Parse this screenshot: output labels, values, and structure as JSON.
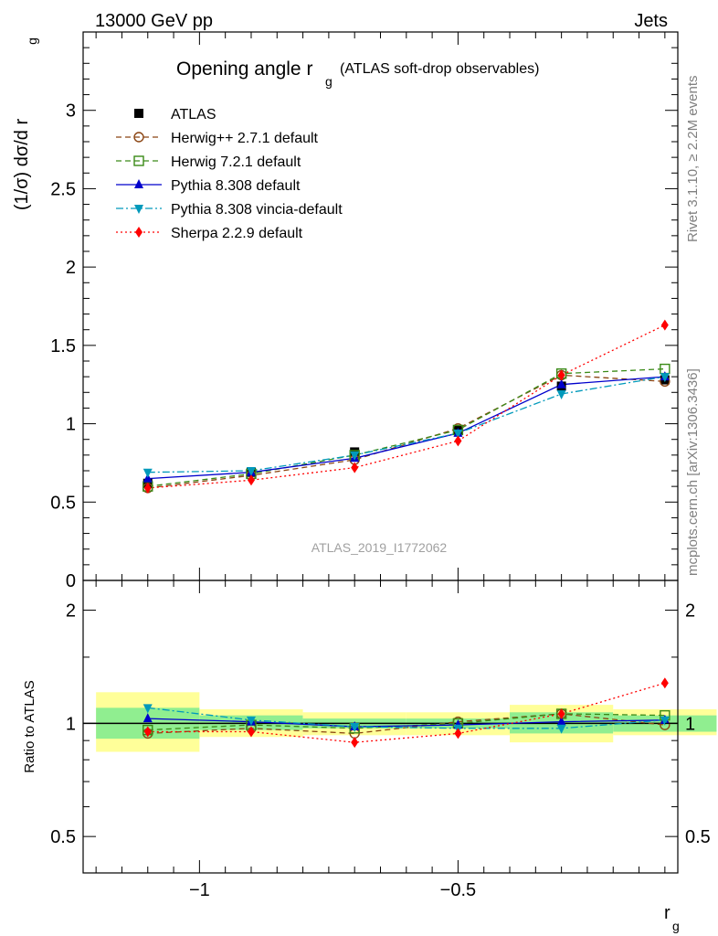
{
  "header": {
    "energy_label": "13000 GeV pp",
    "process_label": "Jets"
  },
  "side_labels": {
    "rivet": "Rivet 3.1.10, ≥ 2.2M events",
    "mcplots": "mcplots.cern.ch [arXiv:1306.3436]"
  },
  "chart_data": [
    {
      "type": "line",
      "title": "Opening angle r",
      "title_sub": "g",
      "title_extra": "(ATLAS soft-drop observables)",
      "ylabel": "(1/σ) dσ/d r",
      "ylabel_sub": "g",
      "watermark": "ATLAS_2019_I1772062",
      "xlim": [
        -1.225,
        -0.075
      ],
      "ylim": [
        0,
        3.5
      ],
      "yticks": [
        0,
        0.5,
        1,
        1.5,
        2,
        2.5,
        3
      ],
      "ytick_labels": [
        "0",
        "0.5",
        "1",
        "1.5",
        "2",
        "2.5",
        "3"
      ],
      "x": [
        -1.1,
        -0.9,
        -0.7,
        -0.5,
        -0.3,
        -0.1
      ],
      "bin_edges": [
        -1.2,
        -1.0,
        -0.8,
        -0.6,
        -0.4,
        -0.2,
        -0.0
      ],
      "series": [
        {
          "name": "ATLAS",
          "color": "#000000",
          "marker": "square",
          "line": "none",
          "values": [
            0.62,
            0.69,
            0.82,
            0.96,
            1.24,
            1.28
          ]
        },
        {
          "name": "Herwig++ 2.7.1 default",
          "color": "#8b4513",
          "marker": "circle-open",
          "line": "dash",
          "values": [
            0.59,
            0.67,
            0.77,
            0.97,
            1.31,
            1.27
          ]
        },
        {
          "name": "Herwig 7.2.1 default",
          "color": "#3a8a17",
          "marker": "square-open",
          "line": "dash",
          "values": [
            0.6,
            0.68,
            0.8,
            0.96,
            1.32,
            1.35
          ]
        },
        {
          "name": "Pythia 8.308 default",
          "color": "#0000cc",
          "marker": "triangle-up",
          "line": "solid",
          "values": [
            0.65,
            0.69,
            0.78,
            0.94,
            1.25,
            1.3
          ]
        },
        {
          "name": "Pythia 8.308 vincia-default",
          "color": "#0099bb",
          "marker": "triangle-down",
          "line": "dashdot",
          "values": [
            0.69,
            0.7,
            0.8,
            0.94,
            1.19,
            1.3
          ]
        },
        {
          "name": "Sherpa 2.2.9 default",
          "color": "#ff0000",
          "marker": "diamond",
          "line": "dot",
          "values": [
            0.59,
            0.64,
            0.72,
            0.89,
            1.31,
            1.63
          ]
        }
      ]
    },
    {
      "type": "line",
      "ylabel": "Ratio to ATLAS",
      "xlabel": "r",
      "xlabel_sub": "g",
      "xlim": [
        -1.225,
        -0.075
      ],
      "ylim": [
        0.4,
        2.4
      ],
      "log_y": true,
      "yticks": [
        0.5,
        1,
        2
      ],
      "ytick_labels": [
        "0.5",
        "1",
        "2"
      ],
      "xticks": [
        -1,
        -0.5
      ],
      "xtick_labels": [
        "−1",
        "−0.5"
      ],
      "reference_line": 1,
      "x": [
        -1.1,
        -0.9,
        -0.7,
        -0.5,
        -0.3,
        -0.1
      ],
      "bin_edges": [
        -1.2,
        -1.0,
        -0.8,
        -0.6,
        -0.4,
        -0.2,
        -0.0
      ],
      "band_inner": [
        [
          0.91,
          1.1
        ],
        [
          0.96,
          1.05
        ],
        [
          0.97,
          1.03
        ],
        [
          0.97,
          1.03
        ],
        [
          0.94,
          1.07
        ],
        [
          0.95,
          1.05
        ]
      ],
      "band_outer": [
        [
          0.84,
          1.21
        ],
        [
          0.92,
          1.09
        ],
        [
          0.93,
          1.07
        ],
        [
          0.93,
          1.07
        ],
        [
          0.89,
          1.12
        ],
        [
          0.93,
          1.09
        ]
      ],
      "band_inner_color": "#90ee90",
      "band_outer_color": "#ffff99",
      "series": [
        {
          "name": "Herwig++ 2.7.1 default",
          "color": "#8b4513",
          "marker": "circle-open",
          "line": "dash",
          "values": [
            0.94,
            0.97,
            0.94,
            1.01,
            1.06,
            0.99
          ]
        },
        {
          "name": "Herwig 7.2.1 default",
          "color": "#3a8a17",
          "marker": "square-open",
          "line": "dash",
          "values": [
            0.96,
            0.99,
            0.97,
            1.0,
            1.06,
            1.05
          ]
        },
        {
          "name": "Pythia 8.308 default",
          "color": "#0000cc",
          "marker": "triangle-up",
          "line": "solid",
          "values": [
            1.03,
            1.01,
            0.98,
            0.99,
            1.01,
            1.02
          ]
        },
        {
          "name": "Pythia 8.308 vincia-default",
          "color": "#0099bb",
          "marker": "triangle-down",
          "line": "dashdot",
          "values": [
            1.1,
            1.02,
            0.98,
            0.97,
            0.97,
            1.02
          ]
        },
        {
          "name": "Sherpa 2.2.9 default",
          "color": "#ff0000",
          "marker": "diamond",
          "line": "dot",
          "values": [
            0.95,
            0.95,
            0.89,
            0.94,
            1.06,
            1.28
          ]
        }
      ]
    }
  ]
}
